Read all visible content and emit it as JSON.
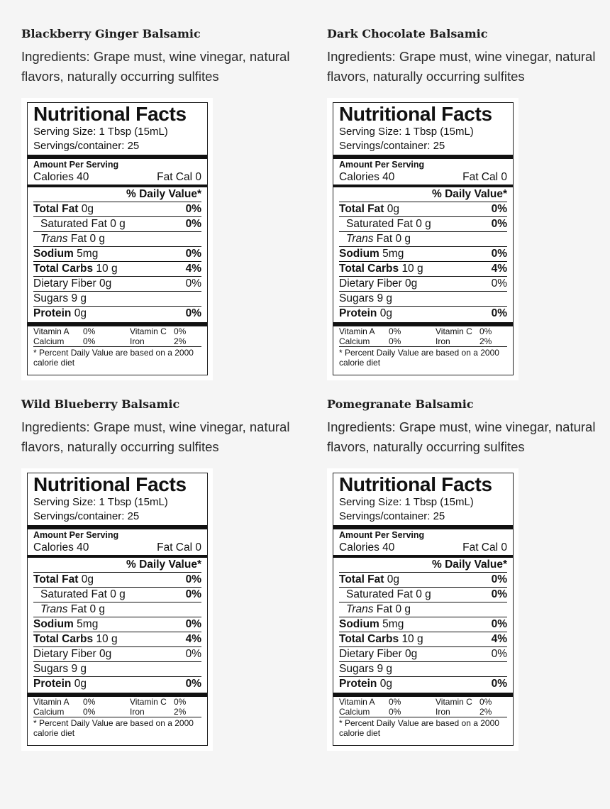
{
  "products": [
    {
      "name": "Blackberry Ginger Balsamic",
      "ingredients": "Ingredients: Grape must, wine vinegar, natural flavors, naturally occurring sulfites"
    },
    {
      "name": "Dark Chocolate Balsamic",
      "ingredients": "Ingredients: Grape must, wine vinegar, natural flavors, naturally occurring sulfites"
    },
    {
      "name": "Wild Blueberry Balsamic",
      "ingredients": "Ingredients: Grape must, wine vinegar, natural flavors, naturally occurring sulfites"
    },
    {
      "name": "Pomegranate Balsamic",
      "ingredients": "Ingredients: Grape must, wine vinegar, natural flavors, naturally occurring sulfites"
    }
  ],
  "facts": {
    "title": "Nutritional Facts",
    "serving_size": "Serving Size: 1 Tbsp (15mL)",
    "servings": "Servings/container:  25",
    "amount_per_serving": "Amount Per Serving",
    "calories": "Calories 40",
    "fat_cal": "Fat Cal  0",
    "daily_value_header": "%  Daily Value*",
    "rows": [
      {
        "label": "Total Fat",
        "amount": "0g",
        "pct": "0%",
        "bold": true,
        "indent": false
      },
      {
        "label": "Saturated Fat",
        "amount": "0 g",
        "pct": "0%",
        "bold": false,
        "indent": true
      },
      {
        "label": "Trans",
        "amount": "Fat 0 g",
        "pct": "",
        "bold": false,
        "indent": true,
        "italic": true
      },
      {
        "label": "Sodium",
        "amount": "5mg",
        "pct": "0%",
        "bold": true,
        "indent": false
      },
      {
        "label": "Total Carbs",
        "amount": "10 g",
        "pct": "4%",
        "bold": true,
        "indent": false
      },
      {
        "label": "Dietary Fiber",
        "amount": "0g",
        "pct": "0%",
        "bold": false,
        "indent": false,
        "plain_pct": true
      },
      {
        "label": "Sugars",
        "amount": "9 g",
        "pct": "",
        "bold": false,
        "indent": false
      },
      {
        "label": "Protein",
        "amount": "0g",
        "pct": "0%",
        "bold": true,
        "indent": false
      }
    ],
    "vitamins": [
      {
        "label": "Vitamin A",
        "value": "0%"
      },
      {
        "label": "Vitamin C",
        "value": "0%"
      },
      {
        "label": "Calcium",
        "value": "0%"
      },
      {
        "label": "Iron",
        "value": "2%"
      }
    ],
    "footnote": "* Percent Daily Value are based on a 2000 calorie diet"
  }
}
